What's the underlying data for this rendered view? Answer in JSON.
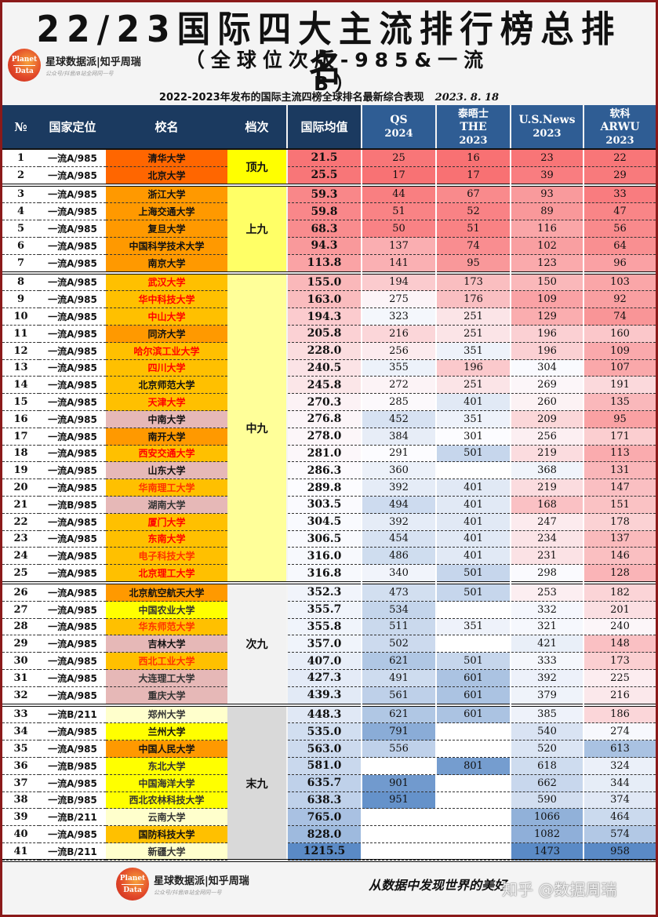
{
  "header": {
    "title": "22/23国际四大主流排行榜总排名",
    "subtitle": "（全球位次版-985&一流B）",
    "caption": "2022-2023年发布的国际主流四榜全球排名最新综合表现",
    "date": "2023. 8. 18",
    "brand": "星球数据派|知乎周瑞",
    "brand_slogan": "公众号/抖音/B站全网同一号",
    "logo_top": "Planet",
    "logo_bottom": "Data"
  },
  "columns": {
    "no": "№",
    "position": "国家定位",
    "name": "校名",
    "tier": "档次",
    "avg": "国际均值",
    "qs": [
      "QS",
      "2024"
    ],
    "the": [
      "泰晤士",
      "THE",
      "2023"
    ],
    "usnews": [
      "U.S.News",
      "2023"
    ],
    "arwu": [
      "软科",
      "ARWU",
      "2023"
    ]
  },
  "tiers": [
    {
      "label": "顶九",
      "start": 0,
      "count": 2,
      "color": "#ffff00"
    },
    {
      "label": "上九",
      "start": 2,
      "count": 5,
      "color": "#ffff66"
    },
    {
      "label": "中九",
      "start": 7,
      "count": 18,
      "color": "#ffff99"
    },
    {
      "label": "次九",
      "start": 25,
      "count": 7,
      "color": "#f2f2f2"
    },
    {
      "label": "末九",
      "start": 32,
      "count": 9,
      "color": "#d9d9d9"
    }
  ],
  "rows": [
    {
      "no": "1",
      "pos": "一流A/985",
      "name": "清华大学",
      "name_bg": "#ff6600",
      "name_color": "#111",
      "avg": "21.5",
      "qs": "25",
      "the": "16",
      "us": "23",
      "arwu": "22"
    },
    {
      "no": "2",
      "pos": "一流A/985",
      "name": "北京大学",
      "name_bg": "#ff6600",
      "name_color": "#111",
      "avg": "25.5",
      "qs": "17",
      "the": "17",
      "us": "39",
      "arwu": "29"
    },
    {
      "no": "3",
      "pos": "一流A/985",
      "name": "浙江大学",
      "name_bg": "#ff9900",
      "name_color": "#111",
      "avg": "59.3",
      "qs": "44",
      "the": "67",
      "us": "93",
      "arwu": "33"
    },
    {
      "no": "4",
      "pos": "一流A/985",
      "name": "上海交通大学",
      "name_bg": "#ff9900",
      "name_color": "#111",
      "avg": "59.8",
      "qs": "51",
      "the": "52",
      "us": "89",
      "arwu": "47"
    },
    {
      "no": "5",
      "pos": "一流A/985",
      "name": "复旦大学",
      "name_bg": "#ff9900",
      "name_color": "#111",
      "avg": "68.3",
      "qs": "50",
      "the": "51",
      "us": "116",
      "arwu": "56"
    },
    {
      "no": "6",
      "pos": "一流A/985",
      "name": "中国科学技术大学",
      "name_bg": "#ff9900",
      "name_color": "#111",
      "avg": "94.3",
      "qs": "137",
      "the": "74",
      "us": "102",
      "arwu": "64"
    },
    {
      "no": "7",
      "pos": "一流A/985",
      "name": "南京大学",
      "name_bg": "#ff9900",
      "name_color": "#111",
      "avg": "113.8",
      "qs": "141",
      "the": "95",
      "us": "123",
      "arwu": "96"
    },
    {
      "no": "8",
      "pos": "一流A/985",
      "name": "武汉大学",
      "name_bg": "#ffc000",
      "name_color": "#ff0000",
      "avg": "155.0",
      "qs": "194",
      "the": "173",
      "us": "150",
      "arwu": "103"
    },
    {
      "no": "9",
      "pos": "一流A/985",
      "name": "华中科技大学",
      "name_bg": "#ffc000",
      "name_color": "#ff0000",
      "avg": "163.0",
      "qs": "275",
      "the": "176",
      "us": "109",
      "arwu": "92"
    },
    {
      "no": "10",
      "pos": "一流A/985",
      "name": "中山大学",
      "name_bg": "#ffc000",
      "name_color": "#ff0000",
      "avg": "194.3",
      "qs": "323",
      "the": "251",
      "us": "129",
      "arwu": "74"
    },
    {
      "no": "11",
      "pos": "一流A/985",
      "name": "同济大学",
      "name_bg": "#ff9900",
      "name_color": "#111",
      "avg": "205.8",
      "qs": "216",
      "the": "251",
      "us": "196",
      "arwu": "160"
    },
    {
      "no": "12",
      "pos": "一流A/985",
      "name": "哈尔滨工业大学",
      "name_bg": "#ffc000",
      "name_color": "#ff0000",
      "avg": "228.0",
      "qs": "256",
      "the": "351",
      "us": "196",
      "arwu": "109"
    },
    {
      "no": "13",
      "pos": "一流A/985",
      "name": "四川大学",
      "name_bg": "#ffc000",
      "name_color": "#ff0000",
      "avg": "240.5",
      "qs": "355",
      "the": "196",
      "us": "304",
      "arwu": "107"
    },
    {
      "no": "14",
      "pos": "一流A/985",
      "name": "北京师范大学",
      "name_bg": "#ffc000",
      "name_color": "#111",
      "avg": "245.8",
      "qs": "272",
      "the": "251",
      "us": "269",
      "arwu": "191"
    },
    {
      "no": "15",
      "pos": "一流A/985",
      "name": "天津大学",
      "name_bg": "#ffc000",
      "name_color": "#ff0000",
      "avg": "270.3",
      "qs": "285",
      "the": "401",
      "us": "260",
      "arwu": "135"
    },
    {
      "no": "16",
      "pos": "一流A/985",
      "name": "中南大学",
      "name_bg": "#e6b8b7",
      "name_color": "#111",
      "avg": "276.8",
      "qs": "452",
      "the": "351",
      "us": "209",
      "arwu": "95"
    },
    {
      "no": "17",
      "pos": "一流A/985",
      "name": "南开大学",
      "name_bg": "#ff9900",
      "name_color": "#111",
      "avg": "278.0",
      "qs": "384",
      "the": "301",
      "us": "256",
      "arwu": "171"
    },
    {
      "no": "18",
      "pos": "一流A/985",
      "name": "西安交通大学",
      "name_bg": "#ffc000",
      "name_color": "#ff0000",
      "avg": "281.0",
      "qs": "291",
      "the": "501",
      "us": "219",
      "arwu": "113"
    },
    {
      "no": "19",
      "pos": "一流A/985",
      "name": "山东大学",
      "name_bg": "#e6b8b7",
      "name_color": "#111",
      "avg": "286.3",
      "qs": "360",
      "the": "",
      "us": "368",
      "arwu": "131"
    },
    {
      "no": "20",
      "pos": "一流A/985",
      "name": "华南理工大学",
      "name_bg": "#ffc000",
      "name_color": "#ff3300",
      "avg": "289.8",
      "qs": "392",
      "the": "401",
      "us": "219",
      "arwu": "147"
    },
    {
      "no": "21",
      "pos": "一流B/985",
      "name": "湖南大学",
      "name_bg": "#e6b8b7",
      "name_color": "#333",
      "avg": "303.5",
      "qs": "494",
      "the": "401",
      "us": "168",
      "arwu": "151"
    },
    {
      "no": "22",
      "pos": "一流A/985",
      "name": "厦门大学",
      "name_bg": "#ffc000",
      "name_color": "#ff0000",
      "avg": "304.5",
      "qs": "392",
      "the": "401",
      "us": "247",
      "arwu": "178"
    },
    {
      "no": "23",
      "pos": "一流A/985",
      "name": "东南大学",
      "name_bg": "#ffc000",
      "name_color": "#ff0000",
      "avg": "306.5",
      "qs": "454",
      "the": "401",
      "us": "234",
      "arwu": "137"
    },
    {
      "no": "24",
      "pos": "一流A/985",
      "name": "电子科技大学",
      "name_bg": "#ffc000",
      "name_color": "#ff3300",
      "avg": "316.0",
      "qs": "486",
      "the": "401",
      "us": "231",
      "arwu": "146"
    },
    {
      "no": "25",
      "pos": "一流A/985",
      "name": "北京理工大学",
      "name_bg": "#ffc000",
      "name_color": "#ff0000",
      "avg": "316.8",
      "qs": "340",
      "the": "501",
      "us": "298",
      "arwu": "128"
    },
    {
      "no": "26",
      "pos": "一流A/985",
      "name": "北京航空航天大学",
      "name_bg": "#ff9900",
      "name_color": "#111",
      "avg": "352.3",
      "qs": "473",
      "the": "501",
      "us": "253",
      "arwu": "182"
    },
    {
      "no": "27",
      "pos": "一流A/985",
      "name": "中国农业大学",
      "name_bg": "#ffff00",
      "name_color": "#333",
      "avg": "355.7",
      "qs": "534",
      "the": "",
      "us": "332",
      "arwu": "201"
    },
    {
      "no": "28",
      "pos": "一流A/985",
      "name": "华东师范大学",
      "name_bg": "#ffc000",
      "name_color": "#ff3300",
      "avg": "355.8",
      "qs": "511",
      "the": "351",
      "us": "321",
      "arwu": "240"
    },
    {
      "no": "29",
      "pos": "一流A/985",
      "name": "吉林大学",
      "name_bg": "#e6b8b7",
      "name_color": "#111",
      "avg": "357.0",
      "qs": "502",
      "the": "",
      "us": "421",
      "arwu": "148"
    },
    {
      "no": "30",
      "pos": "一流A/985",
      "name": "西北工业大学",
      "name_bg": "#ffc000",
      "name_color": "#ff3300",
      "avg": "407.0",
      "qs": "621",
      "the": "501",
      "us": "333",
      "arwu": "173"
    },
    {
      "no": "31",
      "pos": "一流A/985",
      "name": "大连理工大学",
      "name_bg": "#e6b8b7",
      "name_color": "#333",
      "avg": "427.3",
      "qs": "491",
      "the": "601",
      "us": "392",
      "arwu": "225"
    },
    {
      "no": "32",
      "pos": "一流A/985",
      "name": "重庆大学",
      "name_bg": "#e6b8b7",
      "name_color": "#333",
      "avg": "439.3",
      "qs": "561",
      "the": "601",
      "us": "379",
      "arwu": "216"
    },
    {
      "no": "33",
      "pos": "一流B/211",
      "name": "郑州大学",
      "name_bg": "#ffffcc",
      "name_color": "#333",
      "avg": "448.3",
      "qs": "621",
      "the": "601",
      "us": "385",
      "arwu": "186"
    },
    {
      "no": "34",
      "pos": "一流A/985",
      "name": "兰州大学",
      "name_bg": "#ffff00",
      "name_color": "#111",
      "avg": "535.0",
      "qs": "791",
      "the": "",
      "us": "540",
      "arwu": "274"
    },
    {
      "no": "35",
      "pos": "一流A/985",
      "name": "中国人民大学",
      "name_bg": "#ff9900",
      "name_color": "#111",
      "avg": "563.0",
      "qs": "556",
      "the": "",
      "us": "520",
      "arwu": "613"
    },
    {
      "no": "36",
      "pos": "一流B/985",
      "name": "东北大学",
      "name_bg": "#ffff00",
      "name_color": "#333",
      "avg": "581.0",
      "qs": "",
      "the": "801",
      "us": "618",
      "arwu": "324"
    },
    {
      "no": "37",
      "pos": "一流A/985",
      "name": "中国海洋大学",
      "name_bg": "#ffff00",
      "name_color": "#333",
      "avg": "635.7",
      "qs": "901",
      "the": "",
      "us": "662",
      "arwu": "344"
    },
    {
      "no": "38",
      "pos": "一流B/985",
      "name": "西北农林科技大学",
      "name_bg": "#ffff00",
      "name_color": "#333",
      "avg": "638.3",
      "qs": "951",
      "the": "",
      "us": "590",
      "arwu": "374"
    },
    {
      "no": "39",
      "pos": "一流B/211",
      "name": "云南大学",
      "name_bg": "#ffffcc",
      "name_color": "#333",
      "avg": "765.0",
      "qs": "",
      "the": "",
      "us": "1066",
      "arwu": "464"
    },
    {
      "no": "40",
      "pos": "一流A/985",
      "name": "国防科技大学",
      "name_bg": "#ffc000",
      "name_color": "#111",
      "avg": "828.0",
      "qs": "",
      "the": "",
      "us": "1082",
      "arwu": "574"
    },
    {
      "no": "41",
      "pos": "一流B/211",
      "name": "新疆大学",
      "name_bg": "#ffffcc",
      "name_color": "#333",
      "avg": "1215.5",
      "qs": "",
      "the": "",
      "us": "1473",
      "arwu": "958"
    }
  ],
  "footer": {
    "brand": "星球数据派|知乎周瑞",
    "brand_slogan": "公众号/抖音/B站全网同一号",
    "slogan": "从数据中发现世界的美好",
    "watermark": "知乎 @数据周瑞"
  },
  "colors": {
    "header_dark": "#1b3a60",
    "header_blue": "#2f5d94",
    "frame": "#8b1a1a",
    "scale_red": "#f8696b",
    "scale_blue": "#5a8ac6"
  }
}
